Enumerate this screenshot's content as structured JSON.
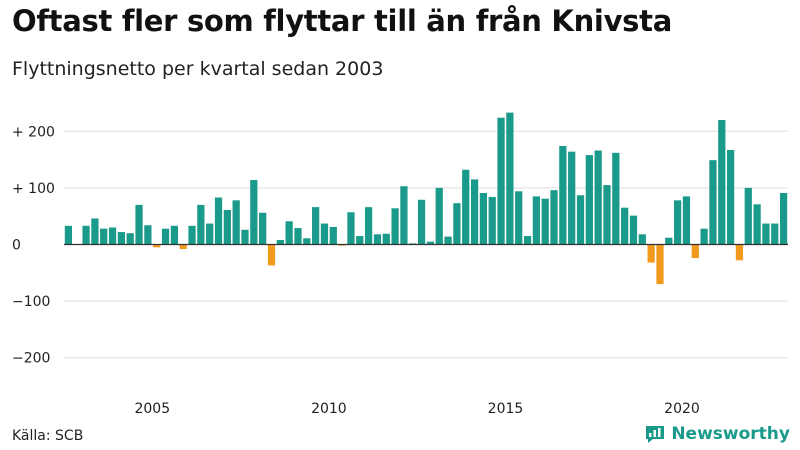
{
  "title": "Oftast fler som flyttar till än från Knivsta",
  "subtitle": "Flyttningsnetto per kvartal sedan 2003",
  "source": "Källa: SCB",
  "brand": {
    "name": "Newsworthy",
    "icon": "chart-bubble-icon"
  },
  "colors": {
    "positive": "#1a9a8a",
    "negative": "#f29a1e",
    "grid": "#dddddd",
    "zero": "#333333"
  },
  "chart_data": {
    "type": "bar",
    "title": "Oftast fler som flyttar till än från Knivsta",
    "subtitle": "Flyttningsnetto per kvartal sedan 2003",
    "xlabel": "",
    "ylabel": "",
    "start": "2003Q1",
    "ylim": [
      -200,
      240
    ],
    "yticks": [
      {
        "value": 200,
        "label": "+ 200"
      },
      {
        "value": 100,
        "label": "+ 100"
      },
      {
        "value": 0,
        "label": "0"
      },
      {
        "value": -100,
        "label": "−100"
      },
      {
        "value": -200,
        "label": "−200"
      }
    ],
    "xticks": [
      {
        "year": 2005,
        "label": "2005"
      },
      {
        "year": 2010,
        "label": "2010"
      },
      {
        "year": 2015,
        "label": "2015"
      },
      {
        "year": 2020,
        "label": "2020"
      }
    ],
    "grid": true,
    "legend": "none",
    "values": [
      33,
      0,
      33,
      46,
      28,
      30,
      22,
      20,
      70,
      34,
      -5,
      28,
      33,
      -8,
      33,
      70,
      37,
      83,
      61,
      78,
      26,
      114,
      56,
      -37,
      8,
      41,
      29,
      11,
      66,
      37,
      31,
      -2,
      57,
      15,
      66,
      18,
      19,
      64,
      103,
      2,
      79,
      5,
      100,
      14,
      73,
      132,
      115,
      91,
      84,
      224,
      233,
      94,
      15,
      85,
      81,
      96,
      174,
      164,
      87,
      158,
      166,
      105,
      162,
      65,
      51,
      18,
      -32,
      -70,
      12,
      78,
      85,
      -24,
      28,
      149,
      220,
      167,
      -28,
      100,
      71,
      37,
      37,
      91
    ]
  }
}
